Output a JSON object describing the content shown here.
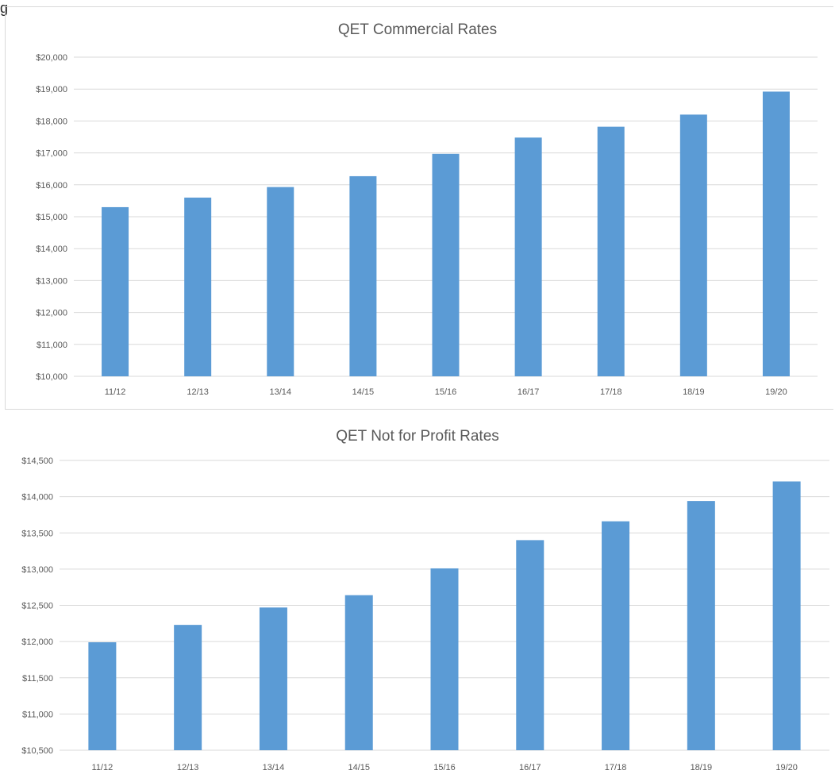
{
  "top_partial_text": "g",
  "colors": {
    "bar": "#5b9bd5",
    "grid": "#d9d9d9",
    "text": "#595959",
    "frame": "#d9d9d9"
  },
  "chart_data": [
    {
      "type": "bar",
      "title": "QET Commercial Rates",
      "categories": [
        "11/12",
        "12/13",
        "13/14",
        "14/15",
        "15/16",
        "16/17",
        "17/18",
        "18/19",
        "19/20"
      ],
      "values": [
        15300,
        15600,
        15930,
        16270,
        16970,
        17480,
        17820,
        18200,
        18920
      ],
      "ylim": [
        10000,
        20000
      ],
      "yticks": [
        10000,
        11000,
        12000,
        13000,
        14000,
        15000,
        16000,
        17000,
        18000,
        19000,
        20000
      ],
      "ytick_labels": [
        "$10,000",
        "$11,000",
        "$12,000",
        "$13,000",
        "$14,000",
        "$15,000",
        "$16,000",
        "$17,000",
        "$18,000",
        "$19,000",
        "$20,000"
      ],
      "xlabel": "",
      "ylabel": "",
      "grid": true,
      "legend": "none"
    },
    {
      "type": "bar",
      "title": "QET Not for Profit Rates",
      "categories": [
        "11/12",
        "12/13",
        "13/14",
        "14/15",
        "15/16",
        "16/17",
        "17/18",
        "18/19",
        "19/20"
      ],
      "values": [
        11990,
        12230,
        12470,
        12640,
        13010,
        13400,
        13660,
        13940,
        14210
      ],
      "ylim": [
        10500,
        14500
      ],
      "yticks": [
        10500,
        11000,
        11500,
        12000,
        12500,
        13000,
        13500,
        14000,
        14500
      ],
      "ytick_labels": [
        "$10,500",
        "$11,000",
        "$11,500",
        "$12,000",
        "$12,500",
        "$13,000",
        "$13,500",
        "$14,000",
        "$14,500"
      ],
      "xlabel": "",
      "ylabel": "",
      "grid": true,
      "legend": "none"
    }
  ]
}
